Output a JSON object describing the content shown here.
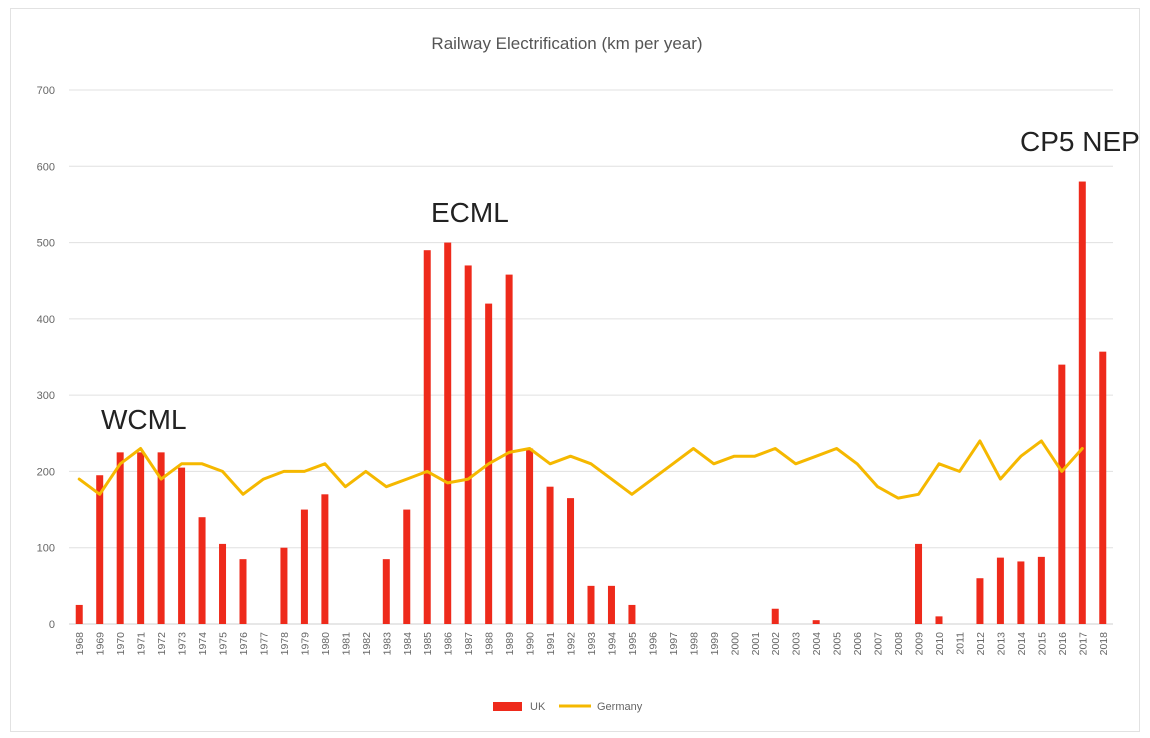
{
  "colors": {
    "uk": "#ee2a1b",
    "germany": "#f5b800",
    "grid": "#e0e0e0",
    "text": "#555555"
  },
  "chart_data": {
    "type": "bar",
    "title": "Railway Electrification (km per year)",
    "xlabel": "",
    "ylabel": "",
    "ylim": [
      0,
      700
    ],
    "yticks": [
      0,
      100,
      200,
      300,
      400,
      500,
      600,
      700
    ],
    "grid": true,
    "legend_position": "bottom-center",
    "categories": [
      "1968",
      "1969",
      "1970",
      "1971",
      "1972",
      "1973",
      "1974",
      "1975",
      "1976",
      "1977",
      "1978",
      "1979",
      "1980",
      "1981",
      "1982",
      "1983",
      "1984",
      "1985",
      "1986",
      "1987",
      "1988",
      "1989",
      "1990",
      "1991",
      "1992",
      "1993",
      "1994",
      "1995",
      "1996",
      "1997",
      "1998",
      "1999",
      "2000",
      "2001",
      "2002",
      "2003",
      "2004",
      "2005",
      "2006",
      "2007",
      "2008",
      "2009",
      "2010",
      "2011",
      "2012",
      "2013",
      "2014",
      "2015",
      "2016",
      "2017",
      "2018"
    ],
    "series": [
      {
        "name": "UK",
        "kind": "bar",
        "values": [
          25,
          195,
          225,
          225,
          225,
          205,
          140,
          105,
          85,
          0,
          100,
          150,
          170,
          0,
          0,
          85,
          150,
          490,
          500,
          470,
          420,
          458,
          230,
          180,
          165,
          50,
          50,
          25,
          0,
          0,
          0,
          0,
          0,
          0,
          20,
          0,
          5,
          0,
          0,
          0,
          0,
          105,
          10,
          0,
          60,
          87,
          82,
          88,
          340,
          580,
          357
        ]
      },
      {
        "name": "Germany",
        "kind": "line",
        "values": [
          190,
          170,
          210,
          230,
          190,
          210,
          210,
          200,
          170,
          190,
          200,
          200,
          210,
          180,
          200,
          180,
          190,
          200,
          185,
          190,
          210,
          225,
          230,
          210,
          220,
          210,
          190,
          170,
          190,
          210,
          230,
          210,
          220,
          220,
          230,
          210,
          220,
          230,
          210,
          180,
          165,
          170,
          210,
          200,
          240,
          190,
          220,
          240,
          200,
          230,
          null
        ]
      }
    ],
    "annotations": [
      {
        "text": "WCML"
      },
      {
        "text": "ECML"
      },
      {
        "text": "CP5 NEP"
      }
    ]
  }
}
